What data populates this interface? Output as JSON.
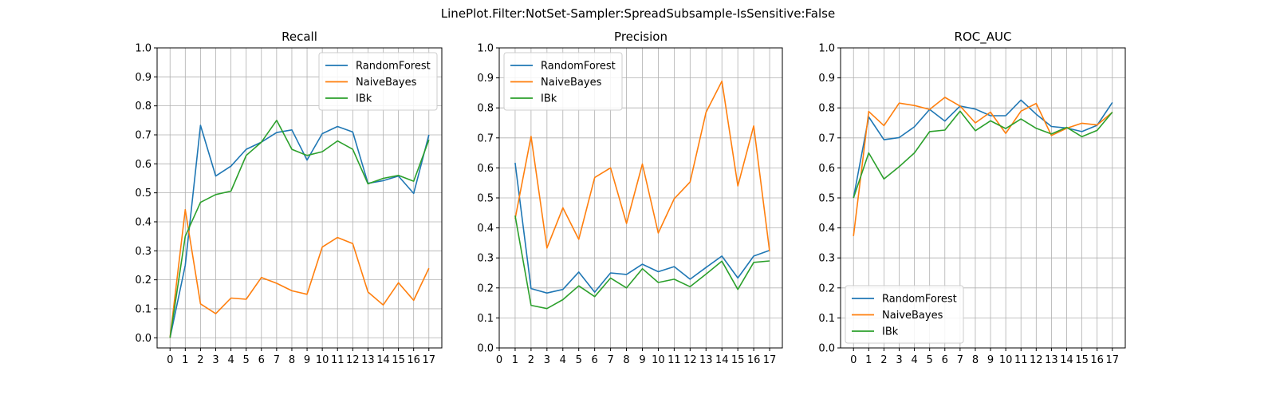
{
  "figure": {
    "suptitle": "LinePlot.Filter:NotSet-Sampler:SpreadSubsample-IsSensitive:False"
  },
  "colors": {
    "RandomForest": "#1f77b4",
    "NaiveBayes": "#ff7f0e",
    "IBk": "#2ca02c",
    "grid": "#b0b0b0",
    "axes": "#000000"
  },
  "chart_data": [
    {
      "type": "line",
      "title": "Recall",
      "xlabel": "",
      "ylabel": "",
      "x_ticks": [
        0,
        1,
        2,
        3,
        4,
        5,
        6,
        7,
        8,
        9,
        10,
        11,
        12,
        13,
        14,
        15,
        16,
        17
      ],
      "xlim": [
        -0.85,
        17.85
      ],
      "ylim": [
        -0.035,
        1.0
      ],
      "y_ticks": [
        0.0,
        0.1,
        0.2,
        0.3,
        0.4,
        0.5,
        0.6,
        0.7,
        0.8,
        0.9,
        1.0
      ],
      "y_tick_labels": [
        "0.0",
        "0.1",
        "0.2",
        "0.3",
        "0.4",
        "0.5",
        "0.6",
        "0.7",
        "0.8",
        "0.9",
        "1.0"
      ],
      "grid": true,
      "legend": "upper right",
      "series": [
        {
          "name": "RandomForest",
          "x": [
            0,
            1,
            2,
            3,
            4,
            5,
            6,
            7,
            8,
            9,
            10,
            11,
            12,
            13,
            14,
            15,
            16,
            17
          ],
          "values": [
            0.0,
            0.25,
            0.733,
            0.558,
            0.592,
            0.65,
            0.675,
            0.708,
            0.717,
            0.613,
            0.704,
            0.729,
            0.71,
            0.533,
            0.542,
            0.558,
            0.498,
            0.7
          ]
        },
        {
          "name": "NaiveBayes",
          "x": [
            0,
            1,
            2,
            3,
            4,
            5,
            6,
            7,
            8,
            9,
            10,
            11,
            12,
            13,
            14,
            15,
            16,
            17
          ],
          "values": [
            0.0,
            0.442,
            0.117,
            0.083,
            0.137,
            0.133,
            0.208,
            0.188,
            0.162,
            0.15,
            0.313,
            0.346,
            0.325,
            0.158,
            0.113,
            0.19,
            0.129,
            0.24
          ]
        },
        {
          "name": "IBk",
          "x": [
            0,
            1,
            2,
            3,
            4,
            5,
            6,
            7,
            8,
            9,
            10,
            11,
            12,
            13,
            14,
            15,
            16,
            17
          ],
          "values": [
            0.0,
            0.35,
            0.467,
            0.494,
            0.506,
            0.629,
            0.675,
            0.75,
            0.65,
            0.629,
            0.642,
            0.679,
            0.65,
            0.531,
            0.55,
            0.56,
            0.54,
            0.683
          ]
        }
      ]
    },
    {
      "type": "line",
      "title": "Precision",
      "xlabel": "",
      "ylabel": "",
      "x_ticks": [
        0,
        1,
        2,
        3,
        4,
        5,
        6,
        7,
        8,
        9,
        10,
        11,
        12,
        13,
        14,
        15,
        16,
        17
      ],
      "xlim": [
        0.0,
        17.8
      ],
      "ylim": [
        0.0,
        1.0
      ],
      "y_ticks": [
        0.0,
        0.1,
        0.2,
        0.3,
        0.4,
        0.5,
        0.6,
        0.7,
        0.8,
        0.9,
        1.0
      ],
      "y_tick_labels": [
        "0.0",
        "0.1",
        "0.2",
        "0.3",
        "0.4",
        "0.5",
        "0.6",
        "0.7",
        "0.8",
        "0.9",
        "1.0"
      ],
      "grid": true,
      "legend": "upper left",
      "series": [
        {
          "name": "RandomForest",
          "x": [
            1,
            2,
            3,
            4,
            5,
            6,
            7,
            8,
            9,
            10,
            11,
            12,
            13,
            14,
            15,
            16,
            17
          ],
          "values": [
            0.617,
            0.198,
            0.183,
            0.195,
            0.253,
            0.186,
            0.25,
            0.245,
            0.279,
            0.254,
            0.271,
            0.229,
            0.268,
            0.306,
            0.233,
            0.306,
            0.325
          ]
        },
        {
          "name": "NaiveBayes",
          "x": [
            1,
            2,
            3,
            4,
            5,
            6,
            7,
            8,
            9,
            10,
            11,
            12,
            13,
            14,
            15,
            16,
            17
          ],
          "values": [
            0.43,
            0.705,
            0.333,
            0.467,
            0.362,
            0.568,
            0.6,
            0.415,
            0.613,
            0.383,
            0.497,
            0.553,
            0.785,
            0.889,
            0.54,
            0.74,
            0.322
          ]
        },
        {
          "name": "IBk",
          "x": [
            1,
            2,
            3,
            4,
            5,
            6,
            7,
            8,
            9,
            10,
            11,
            12,
            13,
            14,
            15,
            16,
            17
          ],
          "values": [
            0.441,
            0.142,
            0.131,
            0.161,
            0.207,
            0.171,
            0.233,
            0.2,
            0.264,
            0.218,
            0.229,
            0.204,
            0.246,
            0.289,
            0.195,
            0.285,
            0.29
          ]
        }
      ]
    },
    {
      "type": "line",
      "title": "ROC_AUC",
      "xlabel": "",
      "ylabel": "",
      "x_ticks": [
        0,
        1,
        2,
        3,
        4,
        5,
        6,
        7,
        8,
        9,
        10,
        11,
        12,
        13,
        14,
        15,
        16,
        17
      ],
      "xlim": [
        -0.85,
        17.85
      ],
      "ylim": [
        0.0,
        1.0
      ],
      "y_ticks": [
        0.0,
        0.1,
        0.2,
        0.3,
        0.4,
        0.5,
        0.6,
        0.7,
        0.8,
        0.9,
        1.0
      ],
      "y_tick_labels": [
        "0.0",
        "0.1",
        "0.2",
        "0.3",
        "0.4",
        "0.5",
        "0.6",
        "0.7",
        "0.8",
        "0.9",
        "1.0"
      ],
      "grid": true,
      "legend": "lower left",
      "series": [
        {
          "name": "RandomForest",
          "x": [
            0,
            1,
            2,
            3,
            4,
            5,
            6,
            7,
            8,
            9,
            10,
            11,
            12,
            13,
            14,
            15,
            16,
            17
          ],
          "values": [
            0.5,
            0.77,
            0.694,
            0.701,
            0.737,
            0.795,
            0.756,
            0.806,
            0.796,
            0.774,
            0.774,
            0.826,
            0.779,
            0.738,
            0.733,
            0.721,
            0.742,
            0.818
          ]
        },
        {
          "name": "NaiveBayes",
          "x": [
            0,
            1,
            2,
            3,
            4,
            5,
            6,
            7,
            8,
            9,
            10,
            11,
            12,
            13,
            14,
            15,
            16,
            17
          ],
          "values": [
            0.373,
            0.788,
            0.741,
            0.816,
            0.808,
            0.795,
            0.835,
            0.806,
            0.75,
            0.786,
            0.715,
            0.789,
            0.815,
            0.708,
            0.732,
            0.749,
            0.743,
            0.785
          ]
        },
        {
          "name": "IBk",
          "x": [
            0,
            1,
            2,
            3,
            4,
            5,
            6,
            7,
            8,
            9,
            10,
            11,
            12,
            13,
            14,
            15,
            16,
            17
          ],
          "values": [
            0.5,
            0.65,
            0.563,
            0.604,
            0.65,
            0.721,
            0.726,
            0.789,
            0.724,
            0.757,
            0.731,
            0.763,
            0.732,
            0.713,
            0.735,
            0.704,
            0.725,
            0.786
          ]
        }
      ]
    }
  ]
}
